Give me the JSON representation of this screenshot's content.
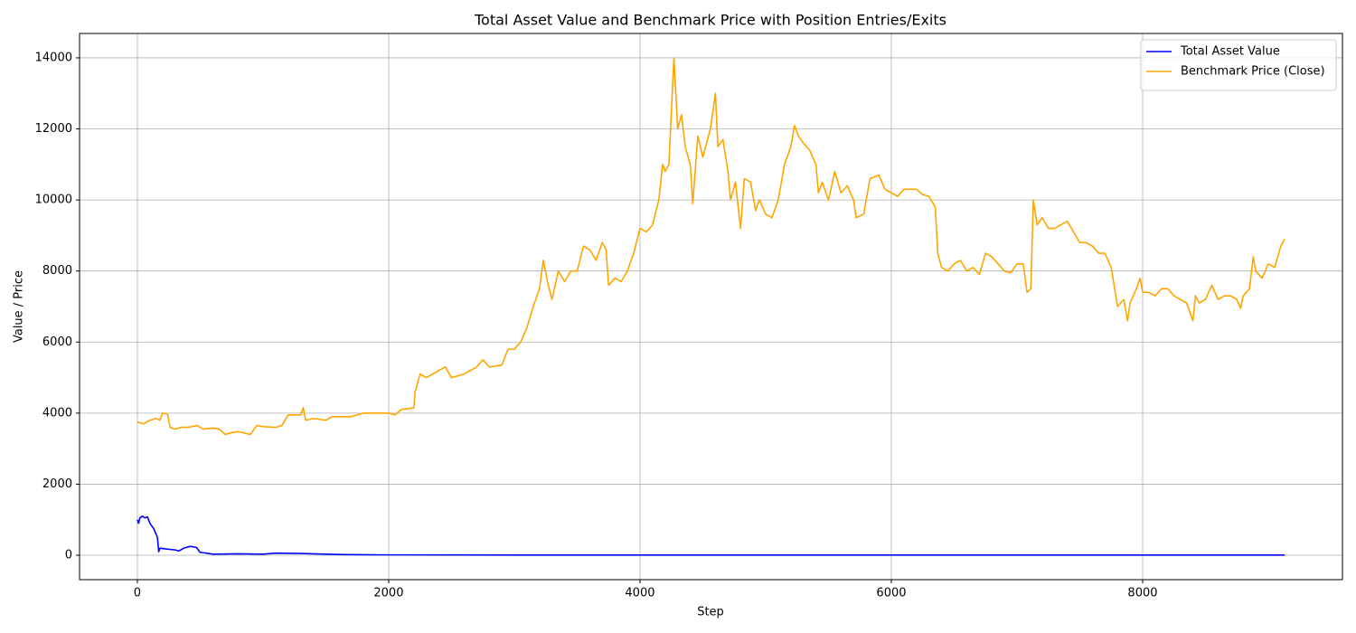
{
  "chart_data": {
    "type": "line",
    "title": "Total Asset Value and Benchmark Price with Position Entries/Exits",
    "x_label": "Step",
    "y_label": "Value / Price",
    "xlim": [
      -460,
      9590
    ],
    "ylim": [
      -687,
      14686
    ],
    "xticks": [
      0,
      2000,
      4000,
      6000,
      8000
    ],
    "yticks": [
      0,
      2000,
      4000,
      6000,
      8000,
      10000,
      12000,
      14000
    ],
    "grid": true,
    "legend": "upper right",
    "series": [
      {
        "name": "Total Asset Value",
        "color": "#0000ff",
        "x": [
          0,
          10,
          20,
          40,
          60,
          80,
          100,
          130,
          160,
          170,
          180,
          220,
          300,
          330,
          370,
          420,
          470,
          500,
          550,
          600,
          800,
          1000,
          1100,
          1300,
          1400,
          1600,
          2000,
          3000,
          9130
        ],
        "values": [
          1000,
          900,
          1050,
          1100,
          1050,
          1080,
          900,
          750,
          500,
          100,
          200,
          180,
          150,
          120,
          200,
          250,
          220,
          80,
          60,
          30,
          40,
          30,
          60,
          50,
          40,
          20,
          10,
          5,
          5
        ]
      },
      {
        "name": "Benchmark Price (Close)",
        "color": "#ffa500",
        "x": [
          0,
          50,
          100,
          150,
          180,
          200,
          240,
          260,
          300,
          350,
          400,
          480,
          520,
          600,
          650,
          700,
          750,
          800,
          900,
          950,
          1000,
          1100,
          1150,
          1200,
          1300,
          1320,
          1340,
          1400,
          1500,
          1550,
          1600,
          1700,
          1800,
          1900,
          2000,
          2050,
          2100,
          2200,
          2210,
          2250,
          2300,
          2400,
          2450,
          2500,
          2600,
          2700,
          2750,
          2800,
          2900,
          2950,
          3000,
          3050,
          3100,
          3150,
          3200,
          3230,
          3270,
          3300,
          3350,
          3400,
          3450,
          3500,
          3550,
          3600,
          3650,
          3700,
          3730,
          3750,
          3800,
          3850,
          3900,
          3950,
          4000,
          4050,
          4100,
          4150,
          4180,
          4200,
          4230,
          4270,
          4300,
          4330,
          4360,
          4400,
          4420,
          4460,
          4500,
          4560,
          4600,
          4620,
          4660,
          4700,
          4720,
          4760,
          4800,
          4830,
          4880,
          4920,
          4950,
          5000,
          5050,
          5100,
          5150,
          5200,
          5230,
          5260,
          5300,
          5350,
          5400,
          5420,
          5450,
          5500,
          5550,
          5600,
          5650,
          5700,
          5720,
          5780,
          5800,
          5830,
          5900,
          5950,
          6000,
          6050,
          6100,
          6200,
          6250,
          6300,
          6350,
          6370,
          6400,
          6450,
          6500,
          6550,
          6600,
          6650,
          6700,
          6750,
          6800,
          6850,
          6900,
          6950,
          7000,
          7050,
          7080,
          7110,
          7130,
          7160,
          7200,
          7250,
          7300,
          7350,
          7400,
          7450,
          7500,
          7550,
          7600,
          7650,
          7700,
          7750,
          7800,
          7850,
          7880,
          7900,
          7950,
          7980,
          8000,
          8050,
          8100,
          8150,
          8200,
          8250,
          8300,
          8350,
          8400,
          8420,
          8450,
          8500,
          8550,
          8600,
          8650,
          8700,
          8750,
          8780,
          8800,
          8850,
          8880,
          8900,
          8950,
          9000,
          9050,
          9100,
          9130
        ],
        "values": [
          3750,
          3700,
          3800,
          3850,
          3800,
          4000,
          3980,
          3600,
          3550,
          3600,
          3600,
          3650,
          3550,
          3580,
          3550,
          3400,
          3450,
          3480,
          3400,
          3650,
          3620,
          3600,
          3650,
          3950,
          3950,
          4150,
          3800,
          3850,
          3800,
          3900,
          3900,
          3900,
          4000,
          4000,
          4000,
          3950,
          4100,
          4150,
          4600,
          5100,
          5000,
          5200,
          5300,
          5000,
          5100,
          5300,
          5500,
          5300,
          5350,
          5800,
          5800,
          6000,
          6400,
          7000,
          7500,
          8300,
          7600,
          7200,
          8000,
          7700,
          8000,
          8000,
          8700,
          8600,
          8300,
          8800,
          8600,
          7600,
          7800,
          7700,
          8000,
          8500,
          9200,
          9100,
          9300,
          10000,
          11000,
          10800,
          11000,
          14000,
          12000,
          12400,
          11500,
          11000,
          9900,
          11800,
          11200,
          12000,
          13000,
          11500,
          11700,
          10800,
          10000,
          10500,
          9200,
          10600,
          10500,
          9700,
          10000,
          9600,
          9500,
          10000,
          11000,
          11500,
          12100,
          11800,
          11600,
          11400,
          11000,
          10200,
          10500,
          10000,
          10800,
          10200,
          10400,
          10000,
          9500,
          9600,
          10000,
          10600,
          10700,
          10300,
          10200,
          10100,
          10300,
          10300,
          10150,
          10100,
          9800,
          8500,
          8100,
          8000,
          8200,
          8300,
          8000,
          8100,
          7900,
          8500,
          8400,
          8200,
          8000,
          7950,
          8200,
          8200,
          7400,
          7500,
          10000,
          9300,
          9500,
          9200,
          9200,
          9300,
          9400,
          9100,
          8800,
          8800,
          8700,
          8500,
          8500,
          8100,
          7000,
          7200,
          6600,
          7100,
          7500,
          7800,
          7400,
          7400,
          7300,
          7500,
          7500,
          7300,
          7200,
          7100,
          6600,
          7300,
          7100,
          7200,
          7600,
          7200,
          7300,
          7300,
          7200,
          6950,
          7300,
          7500,
          8400,
          8000,
          7800,
          8200,
          8100,
          8700,
          8900
        ]
      }
    ]
  }
}
